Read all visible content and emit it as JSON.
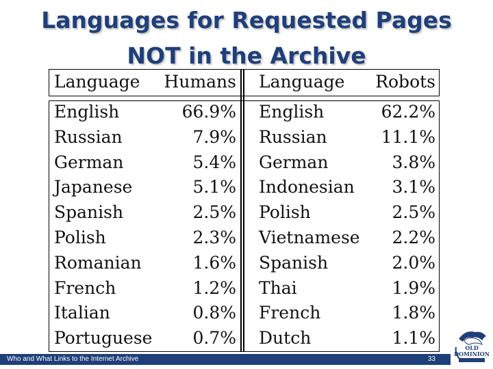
{
  "slide": {
    "title_line1": "Languages for Requested Pages",
    "title_line2": "NOT in the Archive"
  },
  "table": {
    "headers": [
      "Language",
      "Humans",
      "Language",
      "Robots"
    ],
    "rows": [
      [
        "English",
        "66.9%",
        "English",
        "62.2%"
      ],
      [
        "Russian",
        "7.9%",
        "Russian",
        "11.1%"
      ],
      [
        "German",
        "5.4%",
        "German",
        "3.8%"
      ],
      [
        "Japanese",
        "5.1%",
        "Indonesian",
        "3.1%"
      ],
      [
        "Spanish",
        "2.5%",
        "Polish",
        "2.5%"
      ],
      [
        "Polish",
        "2.3%",
        "Vietnamese",
        "2.2%"
      ],
      [
        "Romanian",
        "1.6%",
        "Spanish",
        "2.0%"
      ],
      [
        "French",
        "1.2%",
        "Thai",
        "1.9%"
      ],
      [
        "Italian",
        "0.8%",
        "French",
        "1.8%"
      ],
      [
        "Portuguese",
        "0.7%",
        "Dutch",
        "1.1%"
      ]
    ]
  },
  "footer": {
    "text": "Who and What Links to the Internet Archive",
    "page": "33",
    "bar_color": "#1f3f7a",
    "logo_icon": "old-dominion-university-logo"
  }
}
